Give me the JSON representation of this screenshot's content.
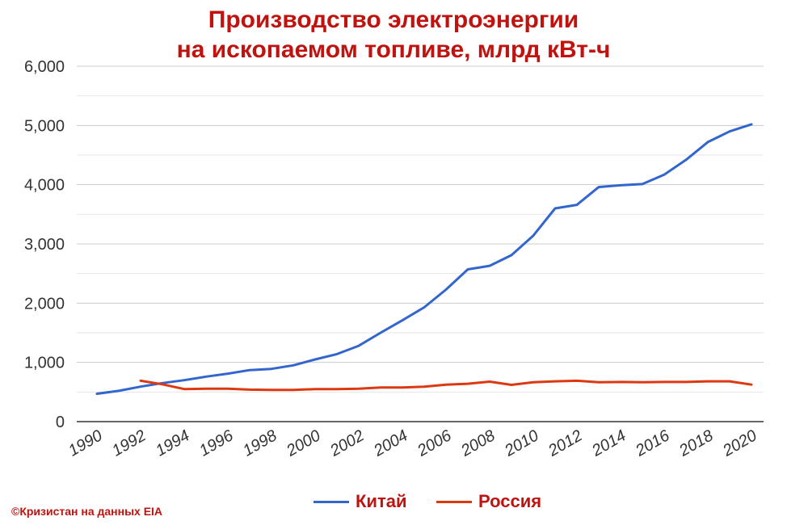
{
  "chart_data": {
    "type": "line",
    "title": [
      "Производство электроэнергии",
      "на ископаемом топливе, млрд кВт-ч"
    ],
    "xlabel": "",
    "ylabel": "",
    "x_ticks": [
      "1990",
      "1992",
      "1994",
      "1996",
      "1998",
      "2000",
      "2002",
      "2004",
      "2006",
      "2008",
      "2010",
      "2012",
      "2014",
      "2016",
      "2018",
      "2020"
    ],
    "y_ticks": [
      "0",
      "1,000",
      "2,000",
      "3,000",
      "4,000",
      "5,000",
      "6,000"
    ],
    "ylim": [
      0,
      6000
    ],
    "xlim": [
      1990,
      2020
    ],
    "grid": true,
    "legend_position": "bottom",
    "series": [
      {
        "name": "Китай",
        "color": "#3366cc",
        "x": [
          1990,
          1991,
          1992,
          1993,
          1994,
          1995,
          1996,
          1997,
          1998,
          1999,
          2000,
          2001,
          2002,
          2003,
          2004,
          2005,
          2006,
          2007,
          2008,
          2009,
          2010,
          2011,
          2012,
          2013,
          2014,
          2015,
          2016,
          2017,
          2018,
          2019,
          2020
        ],
        "values": [
          470,
          520,
          590,
          650,
          700,
          760,
          810,
          870,
          890,
          950,
          1050,
          1140,
          1280,
          1500,
          1710,
          1930,
          2230,
          2570,
          2630,
          2810,
          3140,
          3600,
          3660,
          3960,
          3990,
          4010,
          4170,
          4420,
          4720,
          4900,
          5020
        ]
      },
      {
        "name": "Россия",
        "color": "#dc3912",
        "x": [
          1992,
          1993,
          1994,
          1995,
          1996,
          1997,
          1998,
          1999,
          2000,
          2001,
          2002,
          2003,
          2004,
          2005,
          2006,
          2007,
          2008,
          2009,
          2010,
          2011,
          2012,
          2013,
          2014,
          2015,
          2016,
          2017,
          2018,
          2019,
          2020
        ],
        "values": [
          690,
          630,
          550,
          555,
          555,
          540,
          535,
          535,
          550,
          550,
          555,
          575,
          575,
          590,
          625,
          640,
          675,
          620,
          665,
          680,
          690,
          665,
          670,
          665,
          670,
          670,
          680,
          680,
          625
        ]
      }
    ]
  },
  "credit": "©Кризистан на данных EIA"
}
